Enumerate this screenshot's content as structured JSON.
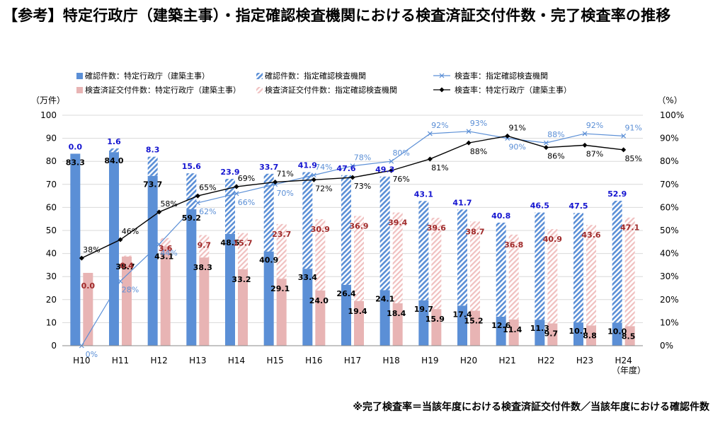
{
  "title": "【参考】特定行政庁（建築主事）・指定確認検査機関における検査済証交付件数・完了検査率の推移",
  "footnote": "※完了検査率＝当該年度における検査済証交付件数／当該年度における確認件数",
  "colors": {
    "confirm_admin": "#5b8fd6",
    "confirm_agency_stripe": "#5b8fd6",
    "issued_admin": "#e8b4b4",
    "issued_agency_stripe": "#f0c0c0",
    "rate_agency": "#5b8fd6",
    "rate_admin": "#000000",
    "label_confirm_agency": "#1515d0",
    "label_issued_agency": "#a02a2a",
    "label_rate_agency": "#5b8fd6"
  },
  "chart_data": {
    "type": "bar",
    "categories": [
      "H10",
      "H11",
      "H12",
      "H13",
      "H14",
      "H15",
      "H16",
      "H17",
      "H18",
      "H19",
      "H20",
      "H21",
      "H22",
      "H23",
      "H24"
    ],
    "x_unit_label": "（年度）",
    "y_left_label": "（万件）",
    "y_right_label": "（%）",
    "ylim_left": [
      0,
      100
    ],
    "ylim_right": [
      0,
      100
    ],
    "y_left_ticks": [
      "0",
      "10",
      "20",
      "30",
      "40",
      "50",
      "60",
      "70",
      "80",
      "90",
      "100"
    ],
    "y_right_ticks": [
      "0%",
      "10%",
      "20%",
      "30%",
      "40%",
      "50%",
      "60%",
      "70%",
      "80%",
      "90%",
      "100%"
    ],
    "grid": true,
    "legend": [
      {
        "key": "confirm_admin",
        "label": "確認件数：特定行政庁（建築主事）"
      },
      {
        "key": "confirm_agency",
        "label": "確認件数：指定確認検査機関"
      },
      {
        "key": "rate_agency",
        "label": "検査率：指定確認検査機関"
      },
      {
        "key": "issued_admin",
        "label": "検査済証交付件数：特定行政庁（建築主事）"
      },
      {
        "key": "issued_agency",
        "label": "検査済証交付件数：指定確認検査機関"
      },
      {
        "key": "rate_admin",
        "label": "検査率：特定行政庁（建築主事）"
      }
    ],
    "series": [
      {
        "name": "確認件数：特定行政庁（建築主事）",
        "axis": "left",
        "stack": "confirm",
        "values": [
          83.3,
          84.0,
          73.7,
          59.2,
          48.5,
          40.9,
          33.4,
          26.4,
          24.1,
          19.7,
          17.4,
          12.6,
          11.3,
          10.1,
          10.0
        ]
      },
      {
        "name": "確認件数：指定確認検査機関",
        "axis": "left",
        "stack": "confirm",
        "values": [
          0.0,
          1.6,
          8.3,
          15.6,
          23.9,
          33.7,
          41.9,
          47.6,
          49.3,
          43.1,
          41.7,
          40.8,
          46.5,
          47.5,
          52.9
        ]
      },
      {
        "name": "検査済証交付件数：特定行政庁（建築主事）",
        "axis": "left",
        "stack": "issued",
        "values": [
          31.6,
          38.7,
          43.1,
          38.3,
          33.2,
          29.1,
          24.0,
          19.4,
          18.4,
          15.9,
          15.2,
          11.4,
          9.7,
          8.8,
          8.5
        ]
      },
      {
        "name": "検査済証交付件数：指定確認検査機関",
        "axis": "left",
        "stack": "issued",
        "values": [
          0.0,
          0.4,
          3.6,
          9.7,
          15.7,
          23.7,
          30.9,
          36.9,
          39.4,
          39.6,
          38.7,
          36.8,
          40.9,
          43.6,
          47.1
        ]
      },
      {
        "name": "検査率：指定確認検査機関",
        "axis": "right",
        "type": "line",
        "values": [
          0,
          28,
          44,
          62,
          66,
          70,
          74,
          78,
          80,
          92,
          93,
          90,
          88,
          92,
          91
        ]
      },
      {
        "name": "検査率：特定行政庁（建築主事）",
        "axis": "right",
        "type": "line",
        "values": [
          38,
          46,
          58,
          65,
          69,
          71,
          72,
          73,
          76,
          81,
          88,
          91,
          86,
          87,
          85
        ]
      }
    ],
    "bar_labels": {
      "confirm_admin": [
        "83.3",
        "84.0",
        "73.7",
        "59.2",
        "48.5",
        "40.9",
        "33.4",
        "26.4",
        "24.1",
        "19.7",
        "17.4",
        "12.6",
        "11.3",
        "10.1",
        "10.0"
      ],
      "confirm_agency": [
        "0.0",
        "1.6",
        "8.3",
        "15.6",
        "23.9",
        "33.7",
        "41.9",
        "47.6",
        "49.3",
        "43.1",
        "41.7",
        "40.8",
        "46.5",
        "47.5",
        "52.9"
      ],
      "issued_admin": [
        "",
        "38.7",
        "43.1",
        "38.3",
        "33.2",
        "29.1",
        "24.0",
        "19.4",
        "18.4",
        "15.9",
        "15.2",
        "11.4",
        "9.7",
        "8.8",
        "8.5"
      ],
      "issued_agency": [
        "0.0",
        "0.4",
        "3.6",
        "9.7",
        "15.7",
        "23.7",
        "30.9",
        "36.9",
        "39.4",
        "39.6",
        "38.7",
        "36.8",
        "40.9",
        "43.6",
        "47.1"
      ],
      "rate_agency": [
        "0%",
        "28%",
        "44%",
        "62%",
        "66%",
        "70%",
        "74%",
        "78%",
        "80%",
        "92%",
        "93%",
        "90%",
        "88%",
        "92%",
        "91%"
      ],
      "rate_admin": [
        "38%",
        "46%",
        "58%",
        "65%",
        "69%",
        "71%",
        "72%",
        "73%",
        "76%",
        "81%",
        "88%",
        "91%",
        "86%",
        "87%",
        "85%"
      ]
    }
  }
}
